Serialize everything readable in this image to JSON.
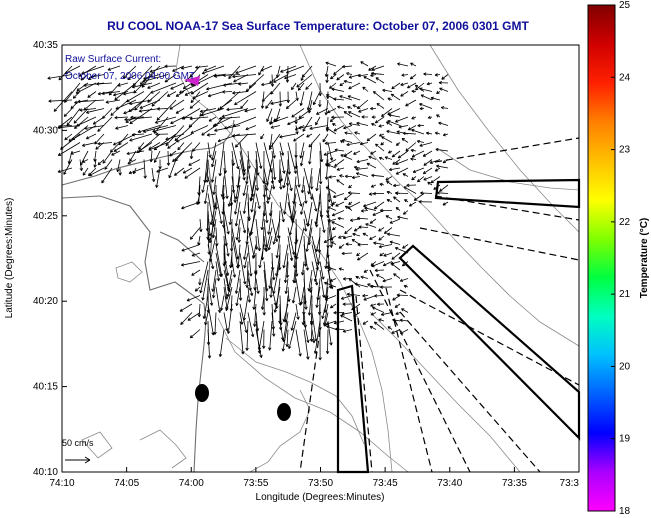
{
  "title": "RU COOL  NOAA-17  Sea Surface Temperature:  October 07, 2006 0301 GMT",
  "x_axis": {
    "label": "Longitude (Degrees:Minutes)",
    "ticks": [
      "74:10",
      "74:05",
      "74:00",
      "73:55",
      "73:50",
      "73:45",
      "73:40",
      "73:35",
      "73:3"
    ]
  },
  "y_axis": {
    "label": "Latitude (Degrees:Minutes)",
    "ticks": [
      "40:35",
      "40:30",
      "40:25",
      "40:20",
      "40:15",
      "40:10"
    ]
  },
  "legend": {
    "line1": "Raw Surface Current:",
    "line2": "October 07, 2006 04:00 GMT"
  },
  "scale": {
    "label": "50 cm/s"
  },
  "colorbar": {
    "title": "Temperature (°C)",
    "ticks": [
      "25",
      "24",
      "23",
      "22",
      "21",
      "20",
      "19",
      "18"
    ],
    "colors": [
      "#ff00ff",
      "#aa00ff",
      "#0000ff",
      "#0060ff",
      "#00c0ff",
      "#00ffc0",
      "#00ff40",
      "#80ff00",
      "#ffff00",
      "#ffc000",
      "#ff8000",
      "#ff2000",
      "#d00000",
      "#800000"
    ]
  },
  "colors": {
    "title": "#10109a",
    "frame": "#000000",
    "contour": "#8a8a8a",
    "arrow": "#000000",
    "magenta_mark": "#cc22cc"
  }
}
